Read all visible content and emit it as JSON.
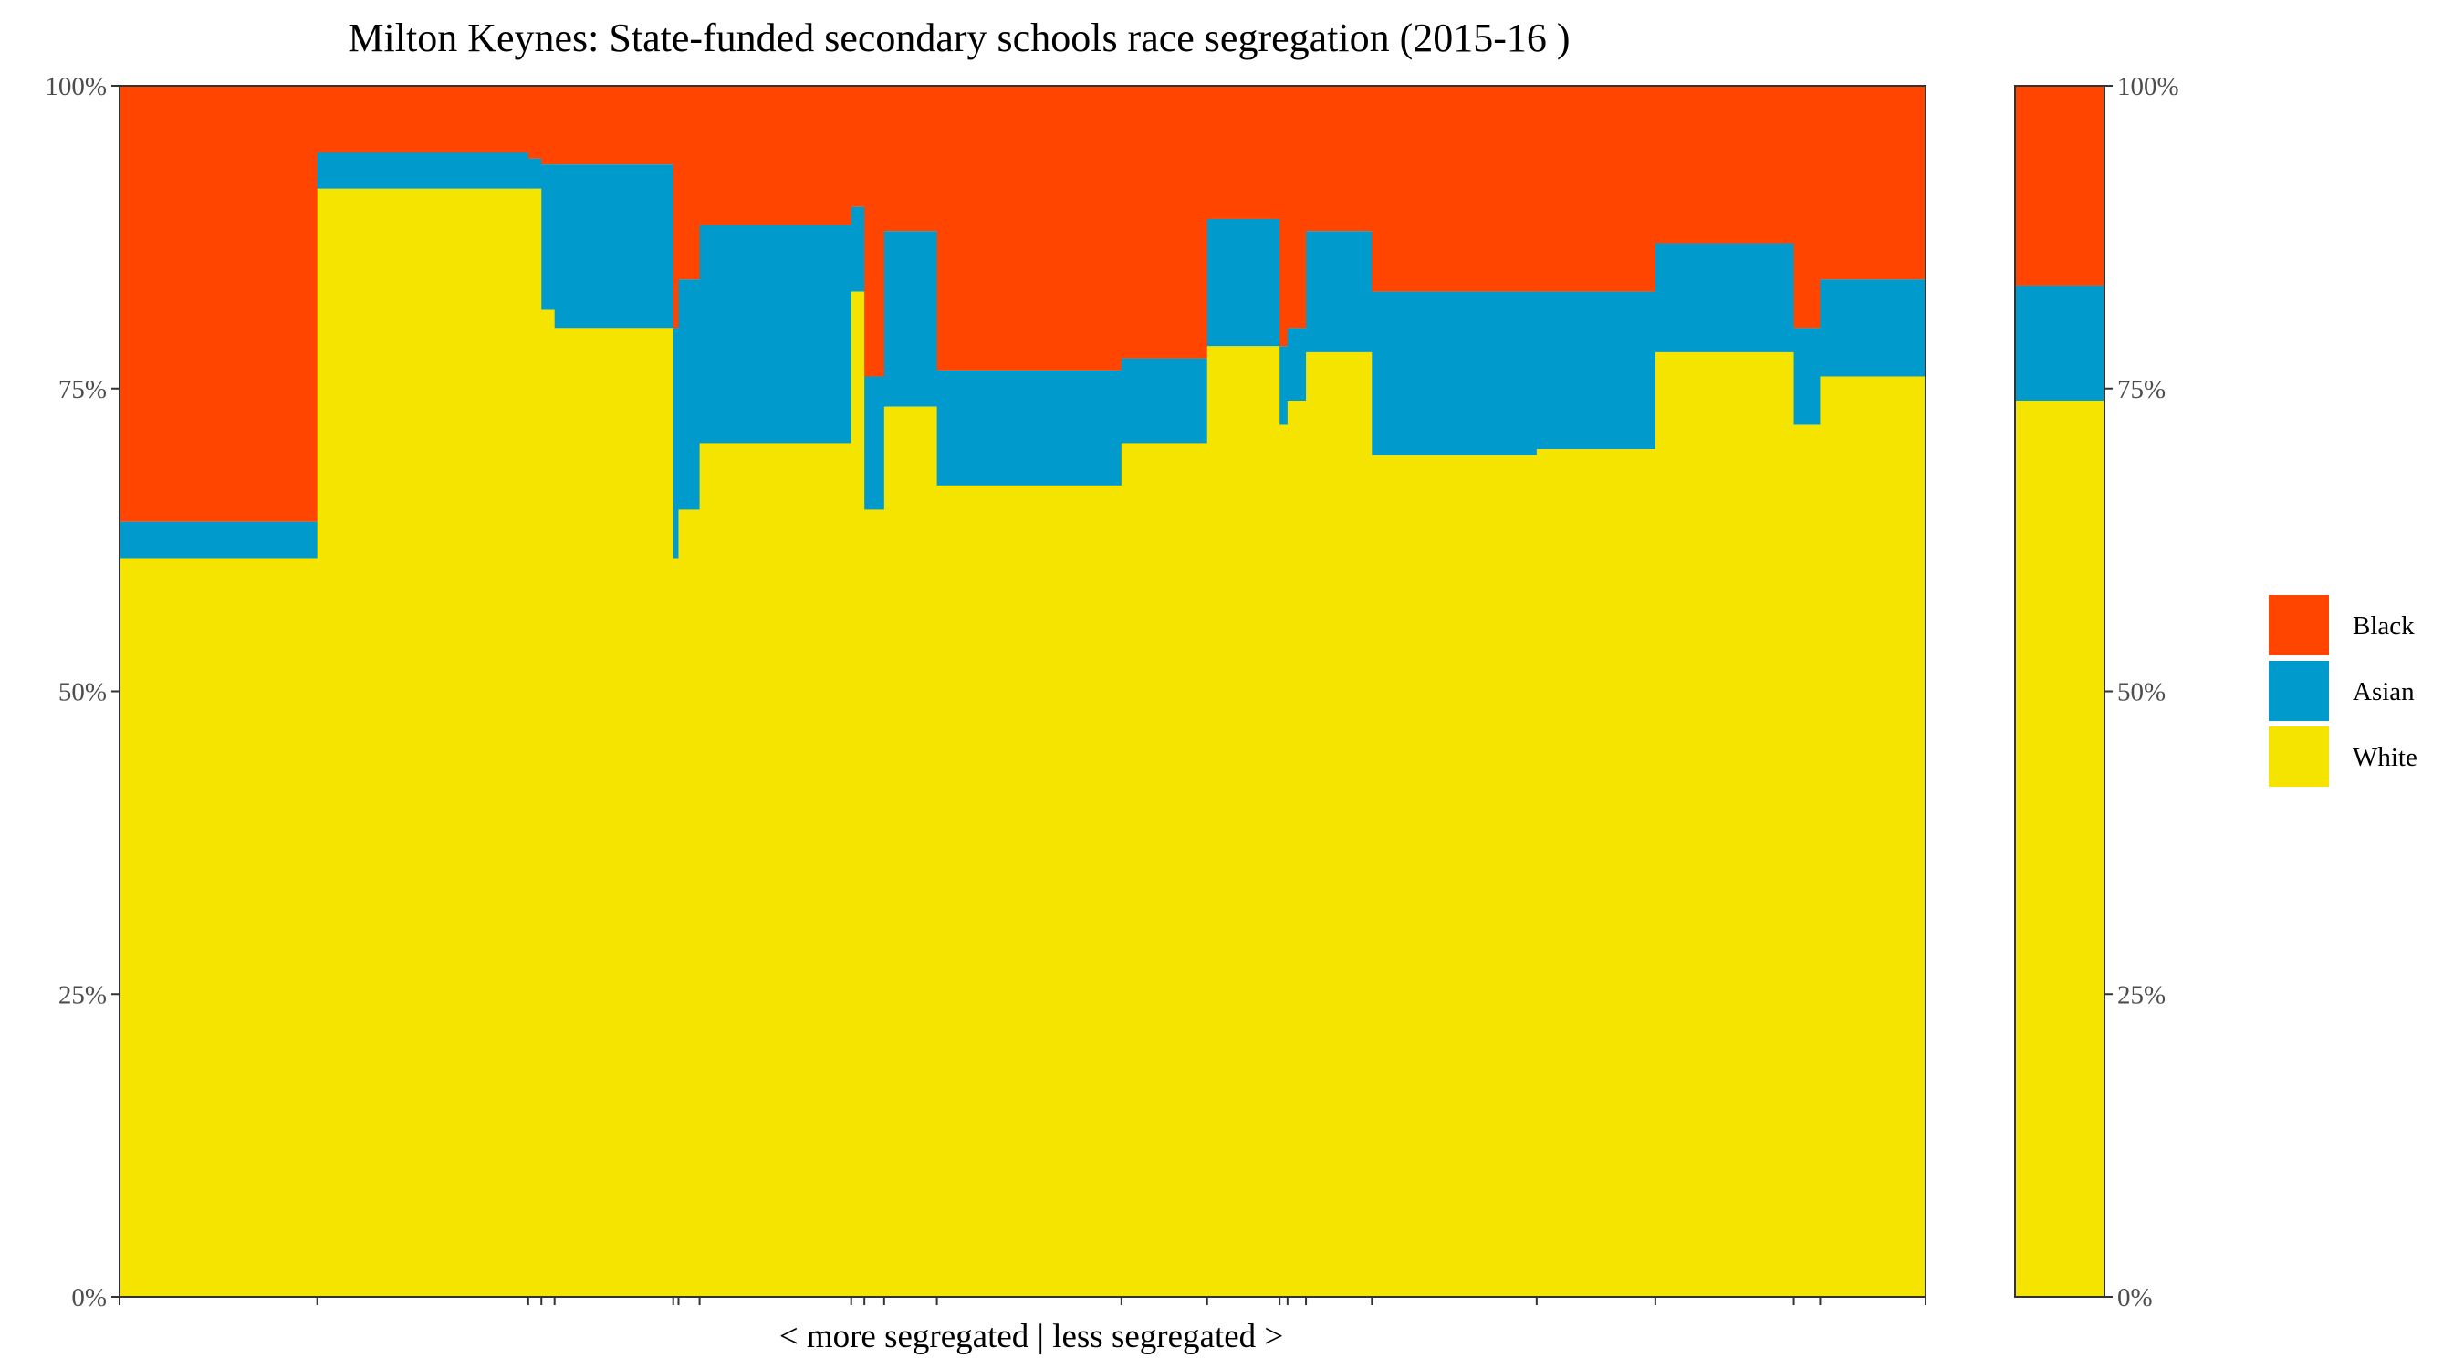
{
  "chart_data": {
    "type": "bar",
    "title": "Milton Keynes: State-funded secondary schools race segregation (2015-16 )",
    "xlabel": "< more segregated | less segregated >",
    "ylabel": "",
    "ylim": [
      0,
      100
    ],
    "y_ticks": [
      "0%",
      "25%",
      "50%",
      "75%",
      "100%"
    ],
    "y_tick_values": [
      0,
      25,
      50,
      75,
      100
    ],
    "legend": {
      "placement": "right",
      "entries": [
        {
          "name": "Black",
          "color": "#FF4500"
        },
        {
          "name": "Asian",
          "color": "#009ACD"
        },
        {
          "name": "White",
          "color": "#F5E400"
        }
      ]
    },
    "colors": {
      "Black": "#FF4500",
      "Asian": "#009ACD",
      "White": "#F5E400"
    },
    "schools": [
      {
        "pupils": 15.0,
        "white": 61,
        "asian": 64,
        "black": 100
      },
      {
        "pupils": 16.0,
        "white": 91.5,
        "asian": 94.5,
        "black": 100
      },
      {
        "pupils": 1.0,
        "white": 91.5,
        "asian": 94,
        "black": 100
      },
      {
        "pupils": 1.0,
        "white": 81.5,
        "asian": 93.5,
        "black": 100
      },
      {
        "pupils": 9.0,
        "white": 80,
        "asian": 93.5,
        "black": 100
      },
      {
        "pupils": 0.4,
        "white": 61,
        "asian": 80,
        "black": 100
      },
      {
        "pupils": 1.6,
        "white": 65,
        "asian": 84,
        "black": 100
      },
      {
        "pupils": 11.5,
        "white": 70.5,
        "asian": 88.5,
        "black": 100
      },
      {
        "pupils": 1.0,
        "white": 83,
        "asian": 90,
        "black": 100
      },
      {
        "pupils": 1.5,
        "white": 65,
        "asian": 76,
        "black": 100
      },
      {
        "pupils": 4.0,
        "white": 73.5,
        "asian": 88,
        "black": 100
      },
      {
        "pupils": 14.0,
        "white": 67,
        "asian": 76.5,
        "black": 100
      },
      {
        "pupils": 6.5,
        "white": 70.5,
        "asian": 77.5,
        "black": 100
      },
      {
        "pupils": 5.5,
        "white": 78.5,
        "asian": 89,
        "black": 100
      },
      {
        "pupils": 0.6,
        "white": 72,
        "asian": 78.5,
        "black": 100
      },
      {
        "pupils": 1.4,
        "white": 74,
        "asian": 80,
        "black": 100
      },
      {
        "pupils": 5.0,
        "white": 78,
        "asian": 88,
        "black": 100
      },
      {
        "pupils": 12.5,
        "white": 69.5,
        "asian": 83,
        "black": 100
      },
      {
        "pupils": 9.0,
        "white": 70,
        "asian": 83,
        "black": 100
      },
      {
        "pupils": 10.5,
        "white": 78,
        "asian": 87,
        "black": 100
      },
      {
        "pupils": 2.0,
        "white": 72,
        "asian": 80,
        "black": 100
      },
      {
        "pupils": 8.0,
        "white": 76,
        "asian": 84,
        "black": 100
      }
    ],
    "overall": {
      "white": 74,
      "asian": 83.5,
      "black": 100
    }
  }
}
